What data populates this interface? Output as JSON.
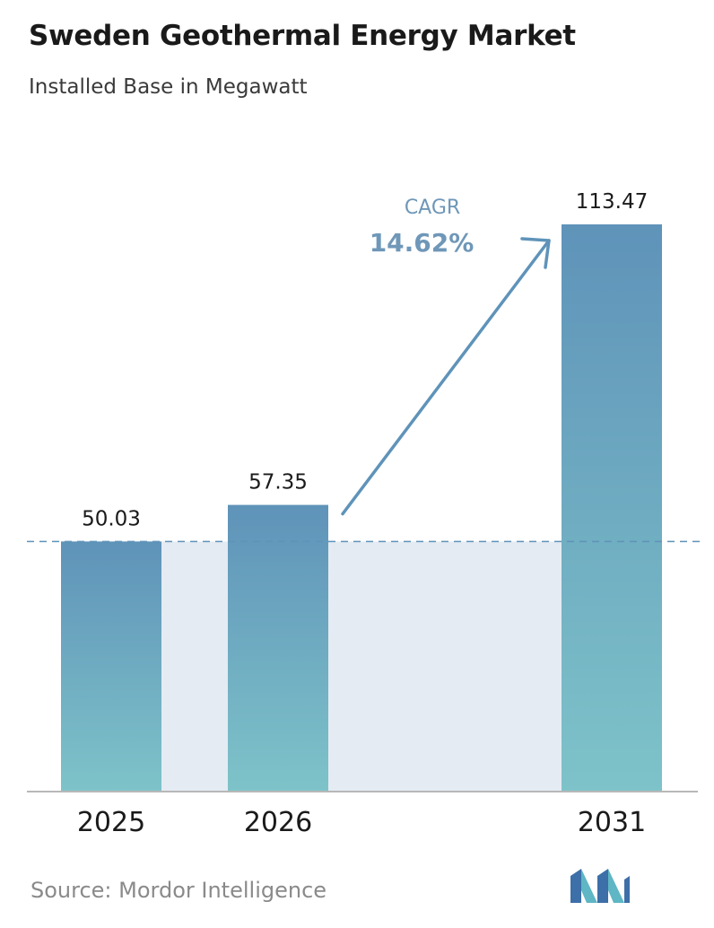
{
  "chart_data": {
    "type": "bar",
    "title": "Sweden Geothermal Energy Market",
    "subtitle": "Installed Base in Megawatt",
    "categories": [
      "2025",
      "2026",
      "2031"
    ],
    "values": [
      50.03,
      57.35,
      113.47
    ],
    "value_labels": [
      "50.03",
      "57.35",
      "113.47"
    ],
    "ylim": [
      0,
      113.47
    ],
    "grid": false,
    "annotation": {
      "label": "CAGR",
      "value": "14.62%"
    }
  },
  "source": "Source:  Mordor Intelligence",
  "colors": {
    "bar_top": "#5f93b9",
    "bar_bottom": "#7ec3c9",
    "shade": "#e4ebf3",
    "arrow": "#5f93b9",
    "dashed_line": "#5f93b9",
    "cagr_text": "#6f97b8",
    "axis": "#b8b8b8"
  },
  "logo_icon": "mordor-intelligence-logo-icon"
}
